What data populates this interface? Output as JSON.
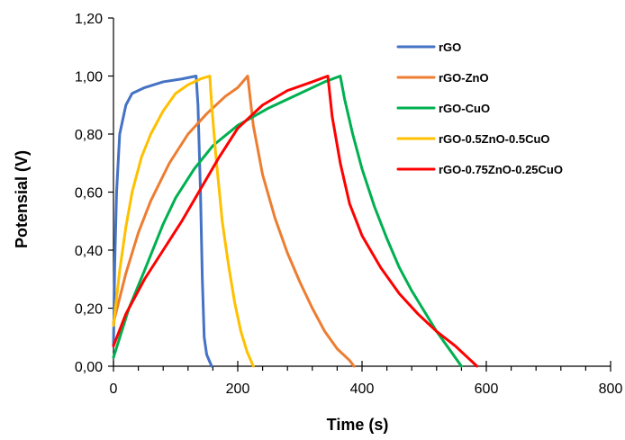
{
  "chart_data": {
    "type": "line",
    "title": "",
    "xlabel": "Time (s)",
    "ylabel": "Potensial (V)",
    "xlim": [
      0,
      800
    ],
    "ylim": [
      0,
      1.2
    ],
    "x_ticks": [
      0,
      200,
      400,
      600,
      800
    ],
    "x_tick_labels": [
      "0",
      "200",
      "400",
      "600",
      "800"
    ],
    "y_ticks": [
      0,
      0.2,
      0.4,
      0.6,
      0.8,
      1.0,
      1.2
    ],
    "y_tick_labels": [
      "0,00",
      "0,20",
      "0,40",
      "0,60",
      "0,80",
      "1,00",
      "1,20"
    ],
    "grid": false,
    "legend_position": "right",
    "series": [
      {
        "name": "rGO",
        "color": "#4472C4",
        "points": [
          [
            0,
            0.07
          ],
          [
            2,
            0.35
          ],
          [
            5,
            0.6
          ],
          [
            10,
            0.8
          ],
          [
            20,
            0.9
          ],
          [
            30,
            0.94
          ],
          [
            50,
            0.96
          ],
          [
            80,
            0.98
          ],
          [
            110,
            0.99
          ],
          [
            133,
            1.0
          ],
          [
            136,
            0.9
          ],
          [
            140,
            0.6
          ],
          [
            143,
            0.3
          ],
          [
            146,
            0.1
          ],
          [
            150,
            0.04
          ],
          [
            158,
            0.0
          ]
        ]
      },
      {
        "name": "rGO-ZnO",
        "color": "#ED7D31",
        "points": [
          [
            0,
            0.15
          ],
          [
            20,
            0.32
          ],
          [
            40,
            0.46
          ],
          [
            60,
            0.57
          ],
          [
            90,
            0.7
          ],
          [
            120,
            0.8
          ],
          [
            150,
            0.87
          ],
          [
            180,
            0.93
          ],
          [
            200,
            0.96
          ],
          [
            216,
            1.0
          ],
          [
            225,
            0.83
          ],
          [
            240,
            0.66
          ],
          [
            260,
            0.51
          ],
          [
            280,
            0.39
          ],
          [
            300,
            0.29
          ],
          [
            320,
            0.2
          ],
          [
            340,
            0.12
          ],
          [
            360,
            0.06
          ],
          [
            380,
            0.02
          ],
          [
            387,
            0.0
          ]
        ]
      },
      {
        "name": "rGO-CuO",
        "color": "#00B050",
        "points": [
          [
            0,
            0.03
          ],
          [
            25,
            0.2
          ],
          [
            50,
            0.33
          ],
          [
            80,
            0.49
          ],
          [
            100,
            0.58
          ],
          [
            130,
            0.68
          ],
          [
            160,
            0.76
          ],
          [
            200,
            0.83
          ],
          [
            250,
            0.89
          ],
          [
            300,
            0.94
          ],
          [
            340,
            0.98
          ],
          [
            365,
            1.0
          ],
          [
            372,
            0.92
          ],
          [
            385,
            0.8
          ],
          [
            400,
            0.68
          ],
          [
            420,
            0.55
          ],
          [
            440,
            0.44
          ],
          [
            460,
            0.34
          ],
          [
            480,
            0.26
          ],
          [
            500,
            0.19
          ],
          [
            520,
            0.12
          ],
          [
            540,
            0.06
          ],
          [
            560,
            0.0
          ]
        ]
      },
      {
        "name": "rGO-0.5ZnO-0.5CuO",
        "color": "#FFC000",
        "points": [
          [
            0,
            0.14
          ],
          [
            10,
            0.33
          ],
          [
            20,
            0.48
          ],
          [
            30,
            0.6
          ],
          [
            45,
            0.72
          ],
          [
            60,
            0.8
          ],
          [
            80,
            0.88
          ],
          [
            100,
            0.94
          ],
          [
            120,
            0.97
          ],
          [
            140,
            0.99
          ],
          [
            155,
            1.0
          ],
          [
            158,
            0.9
          ],
          [
            165,
            0.72
          ],
          [
            175,
            0.5
          ],
          [
            185,
            0.35
          ],
          [
            195,
            0.22
          ],
          [
            205,
            0.12
          ],
          [
            215,
            0.05
          ],
          [
            225,
            0.0
          ]
        ]
      },
      {
        "name": "rGO-0.75ZnO-0.25CuO",
        "color": "#FF0000",
        "points": [
          [
            0,
            0.07
          ],
          [
            20,
            0.18
          ],
          [
            50,
            0.3
          ],
          [
            80,
            0.4
          ],
          [
            110,
            0.5
          ],
          [
            140,
            0.61
          ],
          [
            170,
            0.72
          ],
          [
            200,
            0.82
          ],
          [
            240,
            0.9
          ],
          [
            280,
            0.95
          ],
          [
            320,
            0.98
          ],
          [
            345,
            1.0
          ],
          [
            352,
            0.86
          ],
          [
            365,
            0.7
          ],
          [
            380,
            0.56
          ],
          [
            400,
            0.45
          ],
          [
            430,
            0.34
          ],
          [
            460,
            0.25
          ],
          [
            490,
            0.18
          ],
          [
            520,
            0.12
          ],
          [
            550,
            0.07
          ],
          [
            570,
            0.03
          ],
          [
            585,
            0.0
          ]
        ]
      }
    ]
  }
}
